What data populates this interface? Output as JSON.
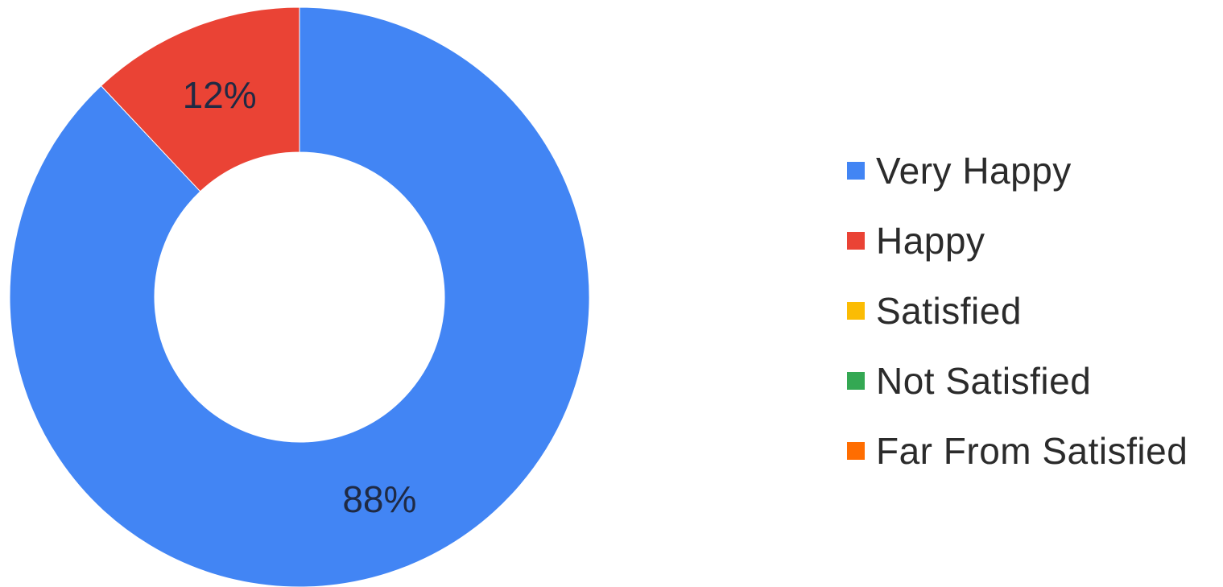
{
  "chart_data": {
    "type": "pie",
    "style": "donut",
    "title": "",
    "legend_position": "right",
    "categories": [
      "Very Happy",
      "Happy",
      "Satisfied",
      "Not Satisfied",
      "Far From Satisfied"
    ],
    "values": [
      88,
      12,
      0,
      0,
      0
    ],
    "data_labels": [
      "88%",
      "12%",
      "",
      "",
      ""
    ],
    "colors": [
      "#4285f4",
      "#ea4335",
      "#fbbc04",
      "#34a853",
      "#ff6d01"
    ]
  }
}
